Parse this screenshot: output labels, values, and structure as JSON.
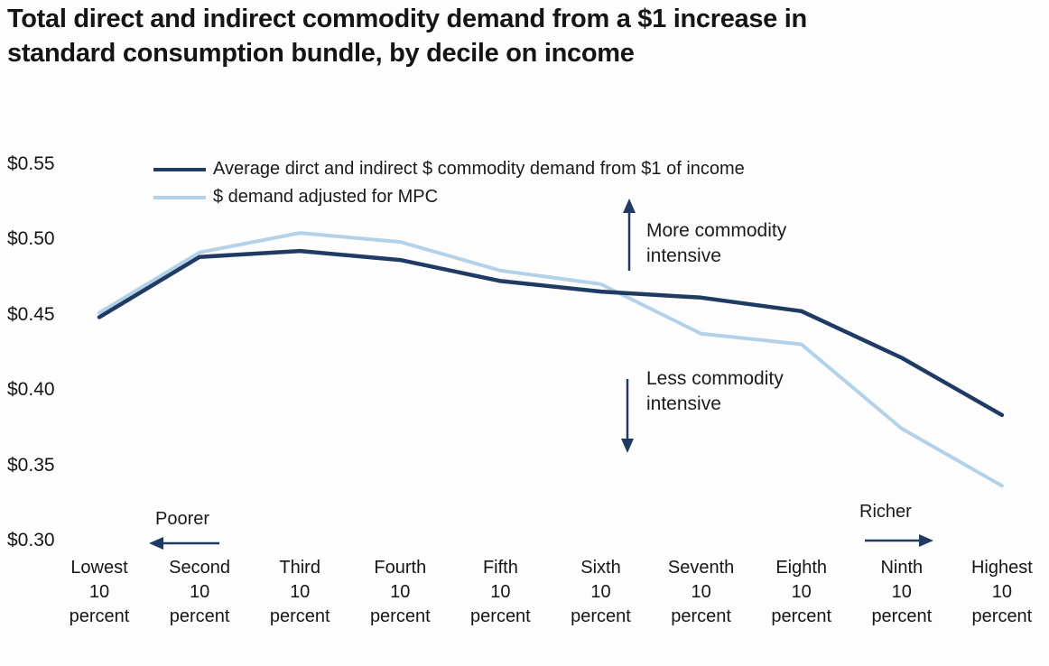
{
  "title": {
    "line1": "Total direct and indirect commodity demand from a $1 increase in",
    "line2": "standard consumption bundle, by decile on income"
  },
  "annotations": {
    "more": {
      "line1": "More commodity",
      "line2": "intensive"
    },
    "less": {
      "line1": "Less commodity",
      "line2": "intensive"
    },
    "poorer": "Poorer",
    "richer": "Richer"
  },
  "chart_data": {
    "type": "line",
    "title": "Total direct and indirect commodity demand from a $1 increase in standard consumption bundle, by decile on income",
    "xlabel": "",
    "ylabel": "",
    "grid": false,
    "legend_position": "top-left",
    "ylim": [
      0.3,
      0.55
    ],
    "categories": [
      "Lowest 10 percent",
      "Second 10 percent",
      "Third 10 percent",
      "Fourth 10 percent",
      "Fifth 10 percent",
      "Sixth 10 percent",
      "Seventh 10 percent",
      "Eighth 10 percent",
      "Ninth 10 percent",
      "Highest 10 percent"
    ],
    "x_axis": {
      "names": [
        "Lowest",
        "Second",
        "Third",
        "Fourth",
        "Fifth",
        "Sixth",
        "Seventh",
        "Eighth",
        "Ninth",
        "Highest"
      ],
      "line2": "10",
      "line3": "percent"
    },
    "y_ticks": [
      {
        "label": "$0.55",
        "value": 0.55
      },
      {
        "label": "$0.50",
        "value": 0.5
      },
      {
        "label": "$0.45",
        "value": 0.45
      },
      {
        "label": "$0.40",
        "value": 0.4
      },
      {
        "label": "$0.35",
        "value": 0.35
      },
      {
        "label": "$0.30",
        "value": 0.3
      }
    ],
    "series": [
      {
        "name": "Average dirct and indirect $ commodity demand from $1 of income",
        "color": "#1f3b63",
        "values": [
          0.449,
          0.489,
          0.493,
          0.487,
          0.473,
          0.466,
          0.462,
          0.453,
          0.422,
          0.384
        ]
      },
      {
        "name": "$ demand adjusted for MPC",
        "color": "#b3d2e9",
        "values": [
          0.452,
          0.492,
          0.505,
          0.499,
          0.48,
          0.471,
          0.438,
          0.431,
          0.375,
          0.337
        ]
      }
    ]
  }
}
